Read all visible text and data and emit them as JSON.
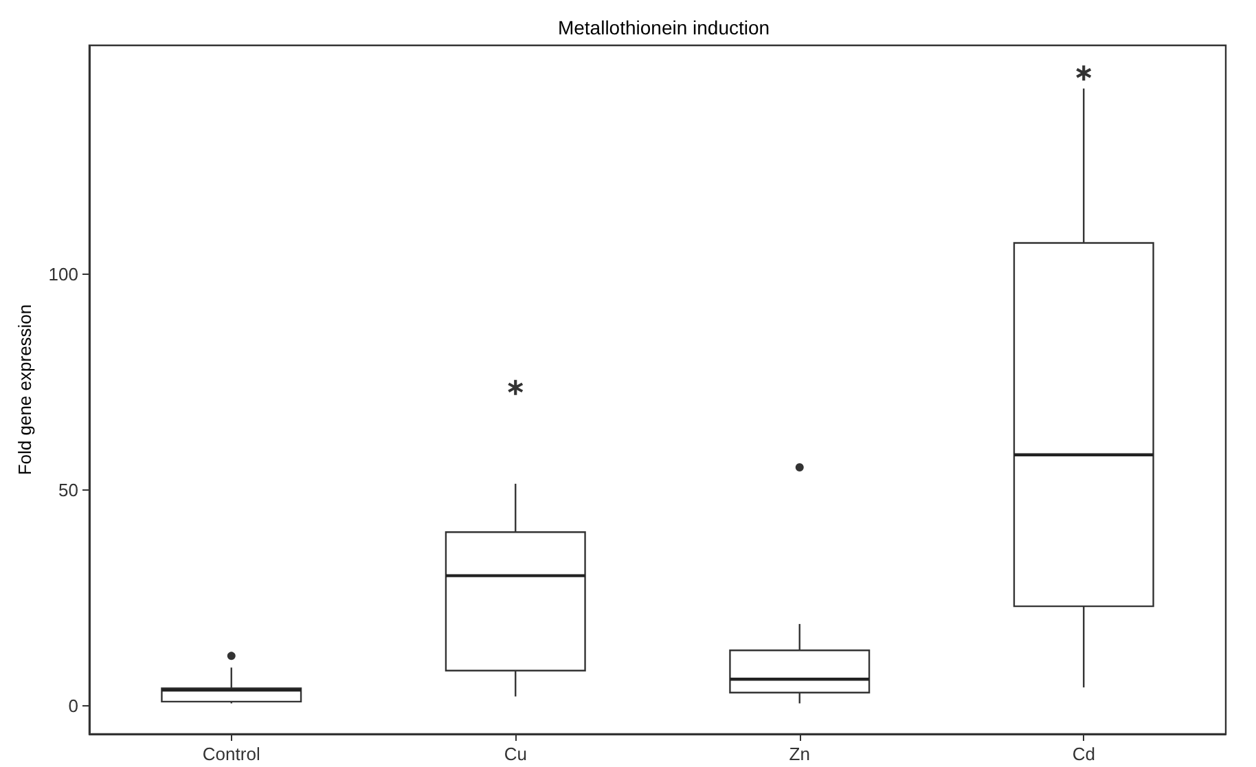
{
  "chart_data": {
    "type": "box",
    "title": "Metallothionein induction",
    "ylabel": "Fold gene expression",
    "categories": [
      "Control",
      "Cu",
      "Zn",
      "Cd"
    ],
    "boxes": [
      {
        "low": 0.5,
        "q1": 0.9,
        "median": 3.6,
        "q3": 4.0,
        "high": 8.8,
        "outliers": [
          11.5
        ]
      },
      {
        "low": 2.1,
        "q1": 8.1,
        "median": 30.1,
        "q3": 40.2,
        "high": 51.4
      },
      {
        "low": 0.5,
        "q1": 3.0,
        "median": 6.1,
        "q3": 12.8,
        "high": 18.9,
        "outliers": [
          55.2
        ]
      },
      {
        "low": 4.2,
        "q1": 23,
        "median": 58.1,
        "q3": 107.2,
        "high": 143
      }
    ],
    "series": [
      {
        "type": "scatter",
        "x": [
          "Cu",
          "Cd"
        ],
        "values": [
          73.7,
          146.6
        ],
        "marker": "cross",
        "color": "#000000"
      }
    ],
    "ylim": [
      -6.6,
      153
    ],
    "yticks": [
      0,
      50,
      100
    ],
    "grid": false
  }
}
